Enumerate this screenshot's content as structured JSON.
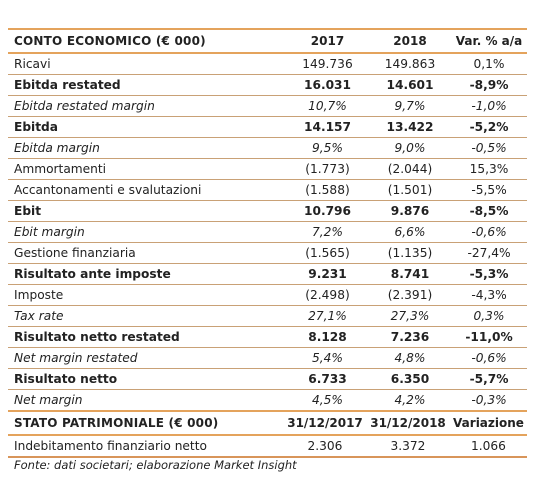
{
  "income": {
    "header": [
      "CONTO ECONOMICO (€ 000)",
      "2017",
      "2018",
      "Var. % a/a"
    ],
    "rows": [
      {
        "label": "Ricavi",
        "v2017": "149.736",
        "v2018": "149.863",
        "var": "0,1%",
        "style": "normal"
      },
      {
        "label": "Ebitda restated",
        "v2017": "16.031",
        "v2018": "14.601",
        "var": "-8,9%",
        "style": "bold"
      },
      {
        "label": "Ebitda restated margin",
        "v2017": "10,7%",
        "v2018": "9,7%",
        "var": "-1,0%",
        "style": "italic"
      },
      {
        "label": "Ebitda",
        "v2017": "14.157",
        "v2018": "13.422",
        "var": "-5,2%",
        "style": "bold"
      },
      {
        "label": "Ebitda margin",
        "v2017": "9,5%",
        "v2018": "9,0%",
        "var": "-0,5%",
        "style": "italic"
      },
      {
        "label": "Ammortamenti",
        "v2017": "(1.773)",
        "v2018": "(2.044)",
        "var": "15,3%",
        "style": "normal"
      },
      {
        "label": "Accantonamenti e svalutazioni",
        "v2017": "(1.588)",
        "v2018": "(1.501)",
        "var": "-5,5%",
        "style": "normal"
      },
      {
        "label": "Ebit",
        "v2017": "10.796",
        "v2018": "9.876",
        "var": "-8,5%",
        "style": "bold"
      },
      {
        "label": "Ebit margin",
        "v2017": "7,2%",
        "v2018": "6,6%",
        "var": "-0,6%",
        "style": "italic"
      },
      {
        "label": "Gestione finanziaria",
        "v2017": "(1.565)",
        "v2018": "(1.135)",
        "var": "-27,4%",
        "style": "normal"
      },
      {
        "label": "Risultato ante imposte",
        "v2017": "9.231",
        "v2018": "8.741",
        "var": "-5,3%",
        "style": "bold"
      },
      {
        "label": "Imposte",
        "v2017": "(2.498)",
        "v2018": "(2.391)",
        "var": "-4,3%",
        "style": "normal"
      },
      {
        "label": "Tax rate",
        "v2017": "27,1%",
        "v2018": "27,3%",
        "var": "0,3%",
        "style": "italic"
      },
      {
        "label": "Risultato netto restated",
        "v2017": "8.128",
        "v2018": "7.236",
        "var": "-11,0%",
        "style": "bold"
      },
      {
        "label": "Net margin restated",
        "v2017": "5,4%",
        "v2018": "4,8%",
        "var": "-0,6%",
        "style": "italic"
      },
      {
        "label": "Risultato netto",
        "v2017": "6.733",
        "v2018": "6.350",
        "var": "-5,7%",
        "style": "bold"
      },
      {
        "label": "Net margin",
        "v2017": "4,5%",
        "v2018": "4,2%",
        "var": "-0,3%",
        "style": "italic"
      }
    ]
  },
  "balance": {
    "header": [
      "STATO PATRIMONIALE (€ 000)",
      "31/12/2017",
      "31/12/2018",
      "Variazione"
    ],
    "rows": [
      {
        "label": "Indebitamento finanziario netto",
        "v2017": "2.306",
        "v2018": "3.372",
        "var": "1.066",
        "style": "normal"
      }
    ]
  },
  "source_note": "Fonte: dati societari; elaborazione Market Insight"
}
